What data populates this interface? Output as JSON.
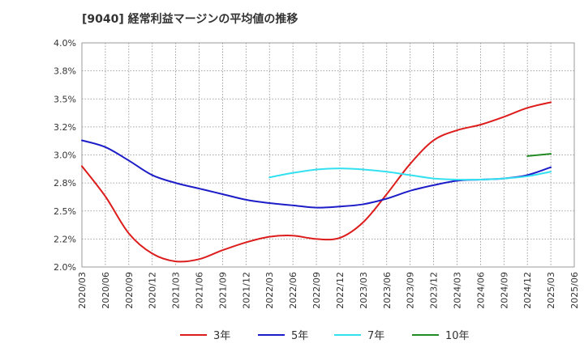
{
  "chart_data": {
    "type": "line",
    "title": "[9040]  経常利益マージンの平均値の推移",
    "xlabel": "",
    "ylabel": "",
    "x_ticks": [
      "2020/03",
      "2020/06",
      "2020/09",
      "2020/12",
      "2021/03",
      "2021/06",
      "2021/09",
      "2021/12",
      "2022/03",
      "2022/06",
      "2022/09",
      "2022/12",
      "2023/03",
      "2023/06",
      "2023/09",
      "2023/12",
      "2024/03",
      "2024/06",
      "2024/09",
      "2024/12",
      "2025/03",
      "2025/06"
    ],
    "y_ticks": [
      "2.0%",
      "2.2%",
      "2.5%",
      "2.8%",
      "3.0%",
      "3.2%",
      "3.5%",
      "3.8%",
      "4.0%"
    ],
    "ylim": [
      2.0,
      4.0
    ],
    "grid": true,
    "legend_position": "bottom",
    "series": [
      {
        "name": "3年",
        "color": "#dd1c1c",
        "x": [
          "2020/03",
          "2020/06",
          "2020/09",
          "2020/12",
          "2021/03",
          "2021/06",
          "2021/09",
          "2021/12",
          "2022/03",
          "2022/06",
          "2022/09",
          "2022/12",
          "2023/03",
          "2023/06",
          "2023/09",
          "2023/12",
          "2024/03",
          "2024/06",
          "2024/09",
          "2024/12",
          "2025/03"
        ],
        "values": [
          2.9,
          2.63,
          2.3,
          2.12,
          2.05,
          2.07,
          2.15,
          2.22,
          2.27,
          2.28,
          2.25,
          2.26,
          2.4,
          2.65,
          2.92,
          3.13,
          3.22,
          3.27,
          3.34,
          3.42,
          3.47
        ]
      },
      {
        "name": "5年",
        "color": "#1c1cc8",
        "x": [
          "2020/03",
          "2020/06",
          "2020/09",
          "2020/12",
          "2021/03",
          "2021/06",
          "2021/09",
          "2021/12",
          "2022/03",
          "2022/06",
          "2022/09",
          "2022/12",
          "2023/03",
          "2023/06",
          "2023/09",
          "2023/12",
          "2024/03",
          "2024/06",
          "2024/09",
          "2024/12",
          "2025/03"
        ],
        "values": [
          3.13,
          3.07,
          2.95,
          2.82,
          2.75,
          2.7,
          2.65,
          2.6,
          2.57,
          2.55,
          2.53,
          2.54,
          2.56,
          2.61,
          2.68,
          2.73,
          2.77,
          2.78,
          2.79,
          2.82,
          2.89
        ]
      },
      {
        "name": "7年",
        "color": "#33e0f0",
        "x": [
          "2022/03",
          "2022/06",
          "2022/09",
          "2022/12",
          "2023/03",
          "2023/06",
          "2023/09",
          "2023/12",
          "2024/03",
          "2024/06",
          "2024/09",
          "2024/12",
          "2025/03"
        ],
        "values": [
          2.8,
          2.84,
          2.87,
          2.88,
          2.87,
          2.85,
          2.82,
          2.79,
          2.78,
          2.78,
          2.79,
          2.81,
          2.85
        ]
      },
      {
        "name": "10年",
        "color": "#228b22",
        "x": [
          "2024/12",
          "2025/03"
        ],
        "values": [
          2.99,
          3.01
        ]
      }
    ]
  }
}
